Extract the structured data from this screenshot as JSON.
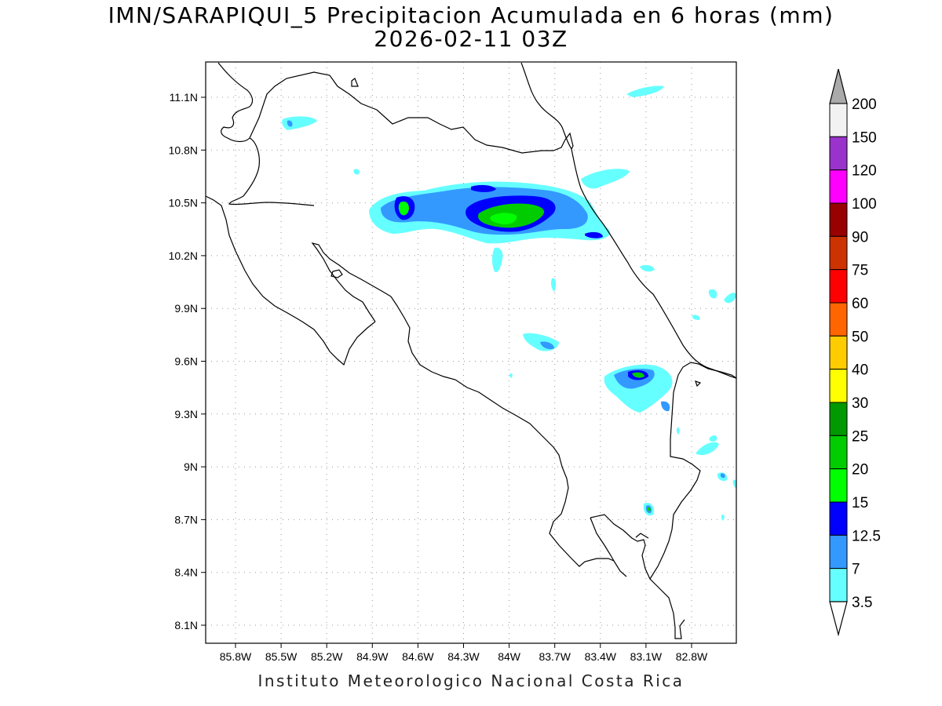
{
  "header": {
    "title_line1": "IMN/SARAPIQUI_5 Precipitacion Acumulada en 6 horas (mm)",
    "title_line2": "2026-02-11 03Z"
  },
  "footer": {
    "text": "Instituto Meteorologico Nacional Costa Rica"
  },
  "map": {
    "lon_labels": [
      "85.8W",
      "85.5W",
      "85.2W",
      "84.9W",
      "84.6W",
      "84.3W",
      "84W",
      "83.7W",
      "83.4W",
      "83.1W",
      "82.8W"
    ],
    "lat_labels": [
      "11.1N",
      "10.8N",
      "10.5N",
      "10.2N",
      "9.9N",
      "9.6N",
      "9.3N",
      "9N",
      "8.7N",
      "8.4N",
      "8.1N"
    ],
    "grid": true,
    "coastline_color": "#000000"
  },
  "colorbar": {
    "levels": [
      "200",
      "150",
      "120",
      "100",
      "90",
      "75",
      "60",
      "50",
      "40",
      "30",
      "25",
      "20",
      "15",
      "12.5",
      "7",
      "3.5"
    ],
    "colors": [
      "#f2f2f2",
      "#9933cc",
      "#ff00ff",
      "#990000",
      "#cc3300",
      "#ff0000",
      "#ff6600",
      "#ffcc00",
      "#ffff00",
      "#009900",
      "#00cc00",
      "#00ff00",
      "#0000ff",
      "#3399ff",
      "#66ffff"
    ],
    "over_color": "#aaaaaa",
    "under_color": "#ffffff"
  }
}
